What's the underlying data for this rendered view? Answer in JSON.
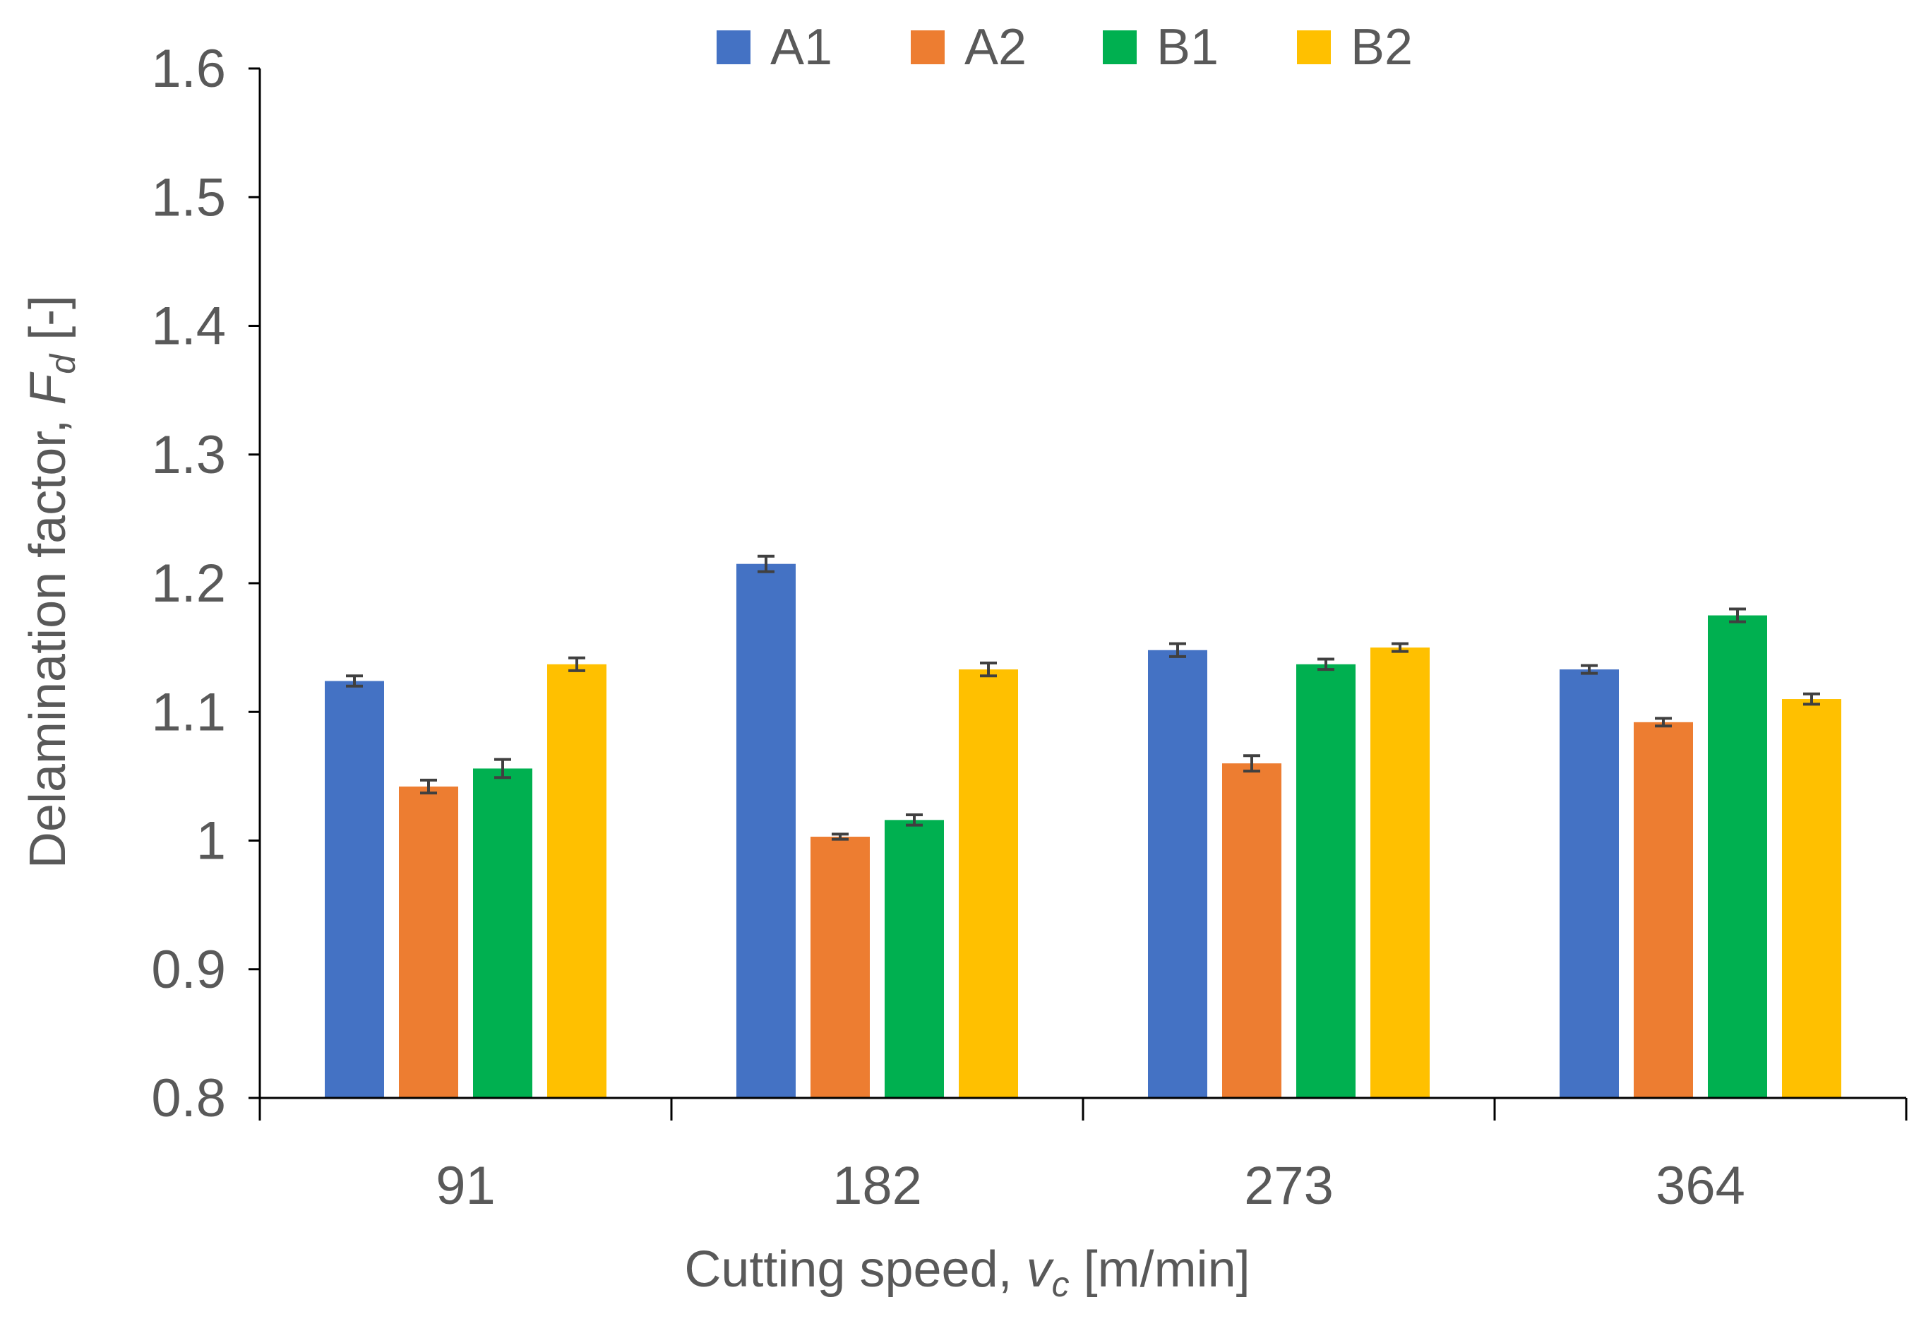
{
  "chart_data": {
    "type": "bar",
    "title": "",
    "categories": [
      "91",
      "182",
      "273",
      "364"
    ],
    "series": [
      {
        "name": "A1",
        "color": "#4472C4",
        "values": [
          1.124,
          1.215,
          1.148,
          1.133
        ],
        "errors": [
          0.004,
          0.006,
          0.005,
          0.003
        ]
      },
      {
        "name": "A2",
        "color": "#ED7D31",
        "values": [
          1.042,
          1.003,
          1.06,
          1.092
        ],
        "errors": [
          0.005,
          0.002,
          0.006,
          0.003
        ]
      },
      {
        "name": "B1",
        "color": "#00B050",
        "values": [
          1.056,
          1.016,
          1.137,
          1.175
        ],
        "errors": [
          0.007,
          0.004,
          0.004,
          0.005
        ]
      },
      {
        "name": "B2",
        "color": "#FFC000",
        "values": [
          1.137,
          1.133,
          1.15,
          1.11
        ],
        "errors": [
          0.005,
          0.005,
          0.003,
          0.004
        ]
      }
    ],
    "ylim": [
      0.8,
      1.6
    ],
    "yticks": [
      "0.8",
      "0.9",
      "1",
      "1.1",
      "1.2",
      "1.3",
      "1.4",
      "1.5",
      "1.6"
    ],
    "xlabel": {
      "prefix": "Cutting speed, ",
      "var": "v",
      "sub": "c",
      "suffix": " [m/min]"
    },
    "ylabel": {
      "prefix": "Delamination factor, ",
      "var": "F",
      "sub": "d",
      "suffix": " [-]"
    },
    "legend_position": "top-center",
    "grid": false
  }
}
